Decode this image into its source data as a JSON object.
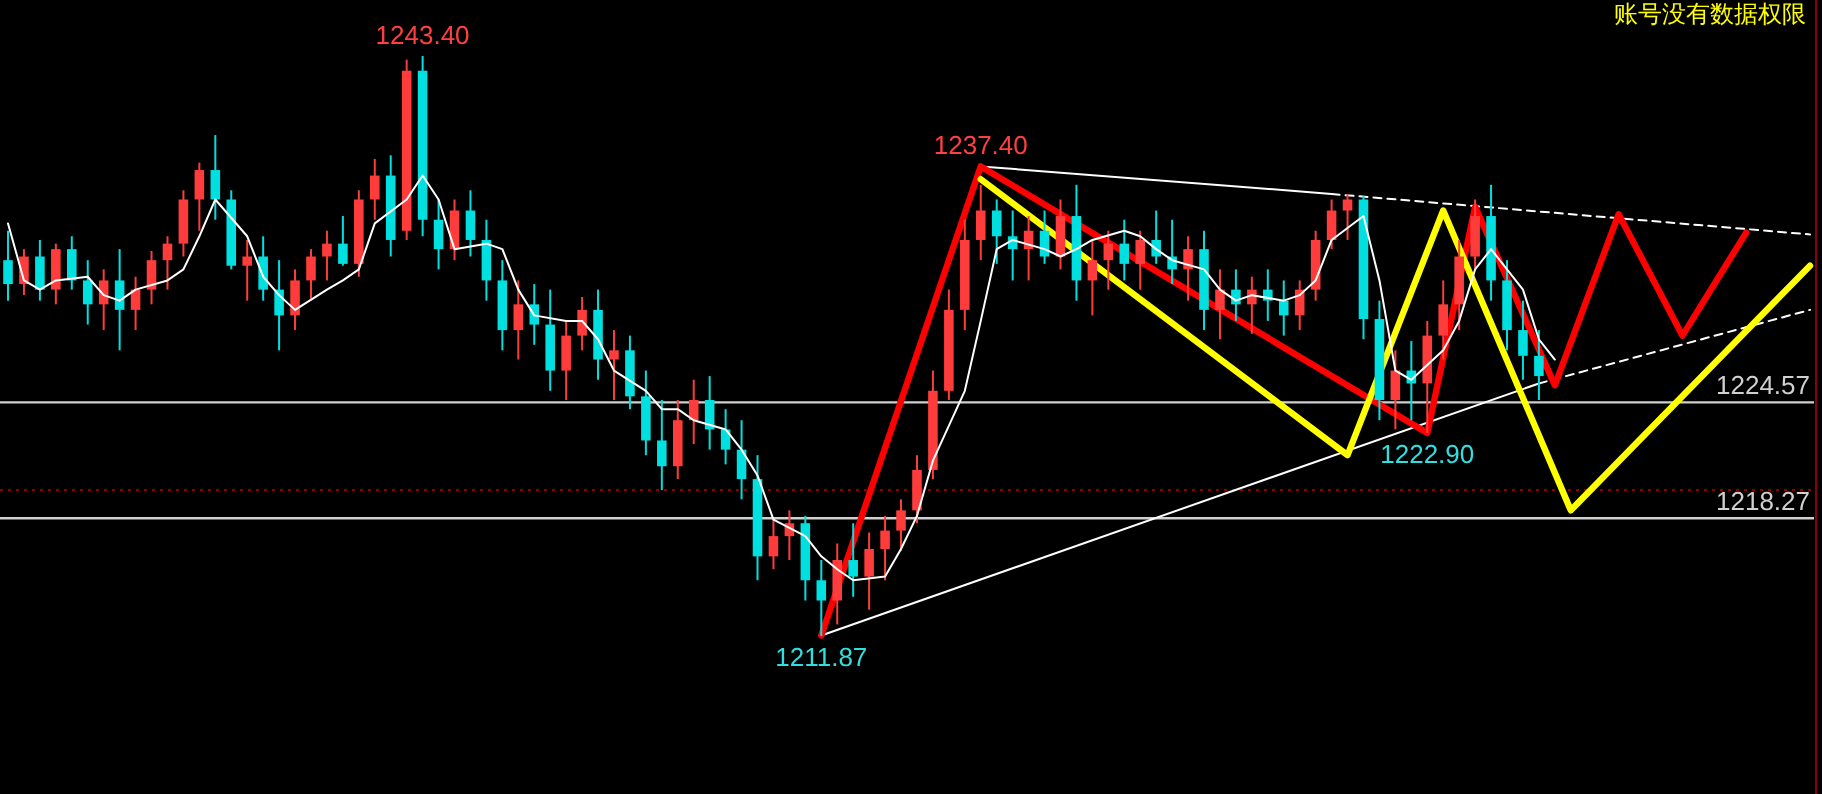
{
  "chart_data": {
    "type": "candlestick",
    "annotations": [
      {
        "text": "1243.40",
        "y": 1243.4
      },
      {
        "text": "1237.40",
        "y": 1237.4
      },
      {
        "text": "1211.87",
        "y": 1211.87
      },
      {
        "text": "1222.90",
        "y": 1222.9
      },
      "账号没有数据权限"
    ],
    "categories": [
      null,
      null,
      null,
      null,
      null,
      null,
      null,
      null,
      null,
      null,
      null,
      null,
      null,
      null,
      null,
      null,
      null,
      null,
      null,
      null,
      null,
      null,
      null,
      null,
      null,
      null,
      null,
      null,
      null,
      null,
      null,
      null,
      null,
      null,
      null,
      null,
      null,
      null,
      null,
      null,
      null,
      null,
      null,
      null,
      null,
      null,
      null,
      null,
      null,
      null,
      null,
      null,
      null,
      null,
      null,
      null,
      null,
      null,
      null,
      null,
      null,
      null,
      null,
      null,
      null,
      null,
      null,
      null,
      null,
      null,
      null,
      null,
      null,
      null,
      null,
      null,
      null,
      null,
      null,
      null,
      null,
      null,
      null,
      null,
      null,
      null,
      null,
      null,
      null,
      null,
      null,
      null,
      null,
      null,
      null,
      null,
      null,
      null,
      null,
      null,
      null,
      null,
      null,
      null,
      null,
      null,
      null,
      null,
      null,
      null,
      null,
      null,
      null,
      null
    ],
    "ohlc": [
      [
        1232.3,
        1233.9,
        1230.1,
        1231.0
      ],
      [
        1231.0,
        1232.9,
        1230.4,
        1232.5
      ],
      [
        1232.5,
        1233.4,
        1230.1,
        1230.7
      ],
      [
        1230.7,
        1233.2,
        1229.9,
        1232.9
      ],
      [
        1232.9,
        1233.6,
        1230.7,
        1231.2
      ],
      [
        1231.2,
        1232.3,
        1228.8,
        1229.9
      ],
      [
        1229.9,
        1231.8,
        1228.5,
        1231.2
      ],
      [
        1231.2,
        1232.9,
        1227.4,
        1229.6
      ],
      [
        1229.6,
        1231.4,
        1228.5,
        1230.7
      ],
      [
        1230.7,
        1232.8,
        1229.9,
        1232.3
      ],
      [
        1232.3,
        1233.6,
        1230.7,
        1233.2
      ],
      [
        1233.2,
        1236.1,
        1232.5,
        1235.6
      ],
      [
        1235.6,
        1237.6,
        1233.9,
        1237.2
      ],
      [
        1237.2,
        1239.1,
        1234.5,
        1235.6
      ],
      [
        1235.6,
        1236.1,
        1231.8,
        1232.0
      ],
      [
        1232.0,
        1233.4,
        1230.1,
        1232.5
      ],
      [
        1232.5,
        1233.6,
        1230.1,
        1230.7
      ],
      [
        1230.7,
        1232.3,
        1227.4,
        1229.3
      ],
      [
        1229.3,
        1231.8,
        1228.5,
        1231.2
      ],
      [
        1231.2,
        1232.9,
        1230.1,
        1232.5
      ],
      [
        1232.5,
        1233.9,
        1231.2,
        1233.2
      ],
      [
        1233.2,
        1234.7,
        1232.0,
        1232.1
      ],
      [
        1232.1,
        1236.1,
        1231.4,
        1235.6
      ],
      [
        1235.6,
        1237.8,
        1234.5,
        1236.9
      ],
      [
        1236.9,
        1238.0,
        1232.5,
        1233.4
      ],
      [
        1233.9,
        1243.2,
        1233.4,
        1242.6
      ],
      [
        1242.6,
        1243.4,
        1233.6,
        1234.5
      ],
      [
        1234.5,
        1235.6,
        1231.8,
        1232.9
      ],
      [
        1232.9,
        1235.6,
        1232.3,
        1235.0
      ],
      [
        1235.0,
        1236.1,
        1232.5,
        1233.4
      ],
      [
        1233.4,
        1234.5,
        1230.1,
        1231.2
      ],
      [
        1231.2,
        1232.3,
        1227.4,
        1228.5
      ],
      [
        1228.5,
        1231.2,
        1226.9,
        1229.9
      ],
      [
        1229.9,
        1231.0,
        1227.7,
        1228.8
      ],
      [
        1228.8,
        1230.7,
        1225.2,
        1226.3
      ],
      [
        1226.3,
        1229.0,
        1224.7,
        1228.2
      ],
      [
        1228.2,
        1230.3,
        1227.4,
        1229.6
      ],
      [
        1229.6,
        1230.7,
        1225.8,
        1226.9
      ],
      [
        1226.9,
        1228.5,
        1224.7,
        1227.4
      ],
      [
        1227.4,
        1228.2,
        1224.2,
        1224.9
      ],
      [
        1224.9,
        1226.3,
        1221.7,
        1222.5
      ],
      [
        1222.5,
        1224.7,
        1219.8,
        1221.1
      ],
      [
        1221.1,
        1224.7,
        1220.4,
        1223.6
      ],
      [
        1223.6,
        1225.8,
        1222.3,
        1224.7
      ],
      [
        1224.7,
        1226.0,
        1222.0,
        1223.1
      ],
      [
        1223.1,
        1224.2,
        1221.2,
        1222.0
      ],
      [
        1222.0,
        1223.6,
        1219.3,
        1220.4
      ],
      [
        1220.4,
        1221.7,
        1214.9,
        1216.2
      ],
      [
        1216.2,
        1218.2,
        1215.5,
        1217.3
      ],
      [
        1217.3,
        1218.7,
        1216.0,
        1218.0
      ],
      [
        1218.0,
        1218.4,
        1213.8,
        1214.9
      ],
      [
        1214.9,
        1216.0,
        1211.87,
        1213.8
      ],
      [
        1213.8,
        1216.9,
        1212.5,
        1216.0
      ],
      [
        1216.0,
        1218.0,
        1214.0,
        1215.1
      ],
      [
        1215.1,
        1217.5,
        1213.3,
        1216.6
      ],
      [
        1216.6,
        1218.4,
        1214.9,
        1217.6
      ],
      [
        1217.6,
        1219.3,
        1216.5,
        1218.7
      ],
      [
        1218.7,
        1221.7,
        1218.0,
        1220.9
      ],
      [
        1220.9,
        1226.3,
        1220.4,
        1225.2
      ],
      [
        1225.2,
        1230.7,
        1224.7,
        1229.6
      ],
      [
        1229.6,
        1234.5,
        1228.5,
        1233.4
      ],
      [
        1233.4,
        1236.4,
        1232.3,
        1235.0
      ],
      [
        1235.0,
        1235.6,
        1232.1,
        1233.6
      ],
      [
        1233.6,
        1235.0,
        1231.2,
        1232.9
      ],
      [
        1232.9,
        1234.7,
        1231.2,
        1233.9
      ],
      [
        1233.9,
        1235.0,
        1232.1,
        1232.5
      ],
      [
        1232.5,
        1235.6,
        1231.8,
        1234.7
      ],
      [
        1234.7,
        1236.4,
        1230.1,
        1231.2
      ],
      [
        1231.2,
        1233.4,
        1229.3,
        1232.3
      ],
      [
        1232.3,
        1233.9,
        1230.7,
        1233.2
      ],
      [
        1233.2,
        1234.5,
        1231.2,
        1232.1
      ],
      [
        1232.1,
        1233.9,
        1230.7,
        1233.4
      ],
      [
        1233.4,
        1235.0,
        1232.1,
        1232.5
      ],
      [
        1232.5,
        1234.5,
        1231.0,
        1231.8
      ],
      [
        1231.8,
        1233.6,
        1230.1,
        1232.9
      ],
      [
        1232.9,
        1233.9,
        1228.5,
        1229.6
      ],
      [
        1229.6,
        1231.8,
        1228.0,
        1230.7
      ],
      [
        1230.7,
        1231.8,
        1229.0,
        1229.9
      ],
      [
        1229.9,
        1231.4,
        1228.3,
        1230.7
      ],
      [
        1230.7,
        1231.8,
        1229.0,
        1230.1
      ],
      [
        1230.1,
        1231.2,
        1228.2,
        1229.3
      ],
      [
        1229.3,
        1231.2,
        1228.5,
        1230.7
      ],
      [
        1230.7,
        1233.9,
        1230.1,
        1233.4
      ],
      [
        1233.4,
        1235.6,
        1232.9,
        1235.0
      ],
      [
        1235.0,
        1235.9,
        1233.4,
        1235.6
      ],
      [
        1235.6,
        1235.8,
        1228.0,
        1229.1
      ],
      [
        1229.1,
        1230.1,
        1223.6,
        1224.7
      ],
      [
        1224.7,
        1227.4,
        1223.1,
        1226.3
      ],
      [
        1226.3,
        1227.9,
        1223.6,
        1225.6
      ],
      [
        1225.6,
        1229.0,
        1222.9,
        1228.2
      ],
      [
        1228.2,
        1231.2,
        1226.9,
        1229.9
      ],
      [
        1229.9,
        1233.4,
        1228.5,
        1232.5
      ],
      [
        1232.5,
        1235.6,
        1231.8,
        1234.7
      ],
      [
        1234.7,
        1236.4,
        1230.1,
        1231.2
      ],
      [
        1231.2,
        1232.3,
        1227.4,
        1228.5
      ],
      [
        1228.5,
        1230.1,
        1225.8,
        1227.1
      ],
      [
        1227.1,
        1228.5,
        1224.7,
        1226.0
      ],
      null,
      null,
      null,
      null,
      null,
      null,
      null,
      null,
      null,
      null,
      null,
      null,
      null,
      null,
      null,
      null,
      null
    ],
    "series": [
      {
        "type": "line",
        "color": "#ffffff",
        "line_style": "solid",
        "values": [
          1234.3,
          1231.2,
          1230.7,
          1231.2,
          null,
          1231.4,
          1230.4,
          1230.1,
          1230.7,
          null,
          1231.2,
          1231.8,
          1233.6,
          1235.6,
          null,
          1233.6,
          1231.4,
          1230.4,
          1229.6,
          null,
          1230.7,
          1231.2,
          1231.8,
          1234.3,
          null,
          1235.6,
          1236.9,
          1235.6,
          1232.9,
          null,
          1233.2,
          1232.9,
          1230.7,
          1229.3,
          null,
          1229.0,
          1229.0,
          1228.0,
          1226.3,
          null,
          1225.2,
          1224.2,
          1224.2,
          1223.6,
          null,
          1223.1,
          1222.0,
          1220.6,
          1218.2,
          null,
          1217.3,
          1216.2,
          1215.5,
          1214.9,
          null,
          1215.1,
          1216.6,
          1218.4,
          1221.4,
          null,
          1225.2,
          1229.0,
          1232.9,
          1233.4,
          null,
          1232.9,
          1232.5,
          1232.9,
          1233.4,
          null,
          1233.9,
          1233.6,
          1232.9,
          1232.3,
          null,
          1231.8,
          1230.7,
          1230.1,
          1230.4,
          null,
          1230.1,
          1230.4,
          1231.2,
          1233.4,
          null,
          1234.7,
          1231.2,
          1226.3,
          1225.8,
          null,
          1227.4,
          1229.0,
          1231.8,
          1232.9,
          null,
          1230.7,
          1228.0,
          1226.9,
          null,
          null,
          null,
          null,
          null,
          null,
          null,
          null,
          null,
          null,
          null,
          null,
          null,
          null,
          null,
          null
        ]
      },
      {
        "type": "line",
        "color": "#ffffff",
        "line_style": "solid",
        "values": [
          null,
          null,
          null,
          null,
          null,
          null,
          null,
          null,
          null,
          null,
          null,
          null,
          null,
          null,
          null,
          null,
          null,
          null,
          null,
          null,
          null,
          null,
          null,
          null,
          null,
          null,
          null,
          null,
          null,
          null,
          null,
          null,
          null,
          null,
          null,
          null,
          null,
          null,
          null,
          null,
          null,
          null,
          null,
          null,
          null,
          null,
          null,
          null,
          null,
          null,
          null,
          1211.9,
          null,
          null,
          null,
          null,
          null,
          null,
          null,
          null,
          null,
          null,
          null,
          null,
          null,
          null,
          null,
          null,
          null,
          null,
          null,
          null,
          null,
          null,
          null,
          null,
          null,
          null,
          null,
          null,
          null,
          null,
          null,
          null,
          null,
          null,
          null,
          null,
          null,
          null,
          null,
          null,
          null,
          null,
          null,
          null,
          1225.6,
          null,
          null,
          null,
          null,
          null,
          null,
          null,
          null,
          null,
          null,
          null,
          null,
          null,
          null,
          null,
          null,
          null
        ]
      },
      {
        "type": "line",
        "color": "#ffffff",
        "line_style": "dashed",
        "values": [
          null,
          null,
          null,
          null,
          null,
          null,
          null,
          null,
          null,
          null,
          null,
          null,
          null,
          null,
          null,
          null,
          null,
          null,
          null,
          null,
          null,
          null,
          null,
          null,
          null,
          null,
          null,
          null,
          null,
          null,
          null,
          null,
          null,
          null,
          null,
          null,
          null,
          null,
          null,
          null,
          null,
          null,
          null,
          null,
          null,
          null,
          null,
          null,
          null,
          null,
          null,
          null,
          null,
          null,
          null,
          null,
          null,
          null,
          null,
          null,
          null,
          null,
          null,
          null,
          null,
          null,
          null,
          null,
          null,
          null,
          null,
          null,
          null,
          null,
          null,
          null,
          null,
          null,
          null,
          null,
          null,
          null,
          null,
          null,
          null,
          null,
          null,
          null,
          null,
          null,
          null,
          null,
          null,
          null,
          null,
          null,
          1225.6,
          null,
          null,
          null,
          null,
          null,
          null,
          null,
          null,
          null,
          null,
          null,
          null,
          null,
          null,
          null,
          null,
          1229.6
        ]
      },
      {
        "type": "line",
        "color": "#ffffff",
        "line_style": "solid",
        "values": [
          null,
          null,
          null,
          null,
          null,
          null,
          null,
          null,
          null,
          null,
          null,
          null,
          null,
          null,
          null,
          null,
          null,
          null,
          null,
          null,
          null,
          null,
          null,
          null,
          null,
          null,
          null,
          null,
          null,
          null,
          null,
          null,
          null,
          null,
          null,
          null,
          null,
          null,
          null,
          null,
          null,
          null,
          null,
          null,
          null,
          null,
          null,
          null,
          null,
          null,
          null,
          null,
          null,
          null,
          null,
          null,
          null,
          null,
          null,
          null,
          null,
          1237.4,
          null,
          null,
          null,
          null,
          null,
          null,
          null,
          null,
          null,
          null,
          null,
          null,
          null,
          null,
          null,
          null,
          null,
          null,
          null,
          null,
          null,
          1235.9,
          null,
          null,
          null,
          null,
          null,
          null,
          null,
          null,
          null,
          null,
          null,
          null,
          null,
          null,
          null,
          null,
          null,
          null,
          null,
          null,
          null,
          null,
          null,
          null,
          null,
          null,
          null,
          null,
          null,
          null
        ]
      },
      {
        "type": "line",
        "color": "#ffffff",
        "line_style": "dashed",
        "values": [
          null,
          null,
          null,
          null,
          null,
          null,
          null,
          null,
          null,
          null,
          null,
          null,
          null,
          null,
          null,
          null,
          null,
          null,
          null,
          null,
          null,
          null,
          null,
          null,
          null,
          null,
          null,
          null,
          null,
          null,
          null,
          null,
          null,
          null,
          null,
          null,
          null,
          null,
          null,
          null,
          null,
          null,
          null,
          null,
          null,
          null,
          null,
          null,
          null,
          null,
          null,
          null,
          null,
          null,
          null,
          null,
          null,
          null,
          null,
          null,
          null,
          null,
          null,
          null,
          null,
          null,
          null,
          null,
          null,
          null,
          null,
          null,
          null,
          null,
          null,
          null,
          null,
          null,
          null,
          null,
          null,
          null,
          null,
          1235.9,
          null,
          null,
          null,
          null,
          null,
          null,
          null,
          null,
          null,
          null,
          null,
          null,
          null,
          null,
          null,
          null,
          null,
          null,
          null,
          null,
          null,
          null,
          null,
          null,
          null,
          null,
          null,
          null,
          null,
          1233.7
        ]
      },
      {
        "type": "line",
        "color": "#ff0000",
        "line_style": "solid",
        "values": [
          null,
          null,
          null,
          null,
          null,
          null,
          null,
          null,
          null,
          null,
          null,
          null,
          null,
          null,
          null,
          null,
          null,
          null,
          null,
          null,
          null,
          null,
          null,
          null,
          null,
          null,
          null,
          null,
          null,
          null,
          null,
          null,
          null,
          null,
          null,
          null,
          null,
          null,
          null,
          null,
          null,
          null,
          null,
          null,
          null,
          null,
          null,
          null,
          null,
          null,
          null,
          1211.9,
          null,
          null,
          null,
          null,
          null,
          null,
          null,
          null,
          null,
          1237.4,
          null,
          null,
          null,
          null,
          null,
          null,
          null,
          null,
          null,
          null,
          null,
          null,
          null,
          null,
          null,
          null,
          null,
          null,
          null,
          null,
          null,
          null,
          null,
          null,
          null,
          null,
          null,
          1222.9,
          null,
          null,
          1235.2,
          null,
          null,
          null,
          null,
          1225.5,
          null,
          null,
          null,
          1234.8,
          null,
          null,
          null,
          1228.2,
          null,
          null,
          null,
          1233.8,
          null,
          null,
          null,
          null
        ]
      },
      {
        "type": "line",
        "color": "#ffff00",
        "line_style": "solid",
        "values": [
          null,
          null,
          null,
          null,
          null,
          null,
          null,
          null,
          null,
          null,
          null,
          null,
          null,
          null,
          null,
          null,
          null,
          null,
          null,
          null,
          null,
          null,
          null,
          null,
          null,
          null,
          null,
          null,
          null,
          null,
          null,
          null,
          null,
          null,
          null,
          null,
          null,
          null,
          null,
          null,
          null,
          null,
          null,
          null,
          null,
          null,
          null,
          null,
          null,
          null,
          null,
          null,
          null,
          null,
          null,
          null,
          null,
          null,
          null,
          null,
          null,
          1236.7,
          null,
          null,
          null,
          null,
          null,
          null,
          null,
          null,
          null,
          null,
          null,
          null,
          null,
          null,
          null,
          null,
          null,
          null,
          null,
          null,
          null,
          null,
          1221.7,
          null,
          null,
          null,
          null,
          null,
          1235.0,
          null,
          null,
          null,
          null,
          null,
          null,
          null,
          1218.7,
          null,
          null,
          null,
          null,
          null,
          null,
          null,
          null,
          null,
          null,
          null,
          null,
          null,
          null,
          1232.0
        ]
      }
    ],
    "ref_lines": [
      {
        "axis": "y",
        "value": 1224.57,
        "label": "1224.57",
        "color": "#d0d0d0",
        "line_style": "solid"
      },
      {
        "axis": "y",
        "value": 1218.27,
        "label": "1218.27",
        "color": "#d0d0d0",
        "line_style": "solid"
      },
      {
        "axis": "y",
        "value": 1219.8,
        "label": null,
        "color": "#8b0000",
        "line_style": "dotted"
      }
    ]
  }
}
